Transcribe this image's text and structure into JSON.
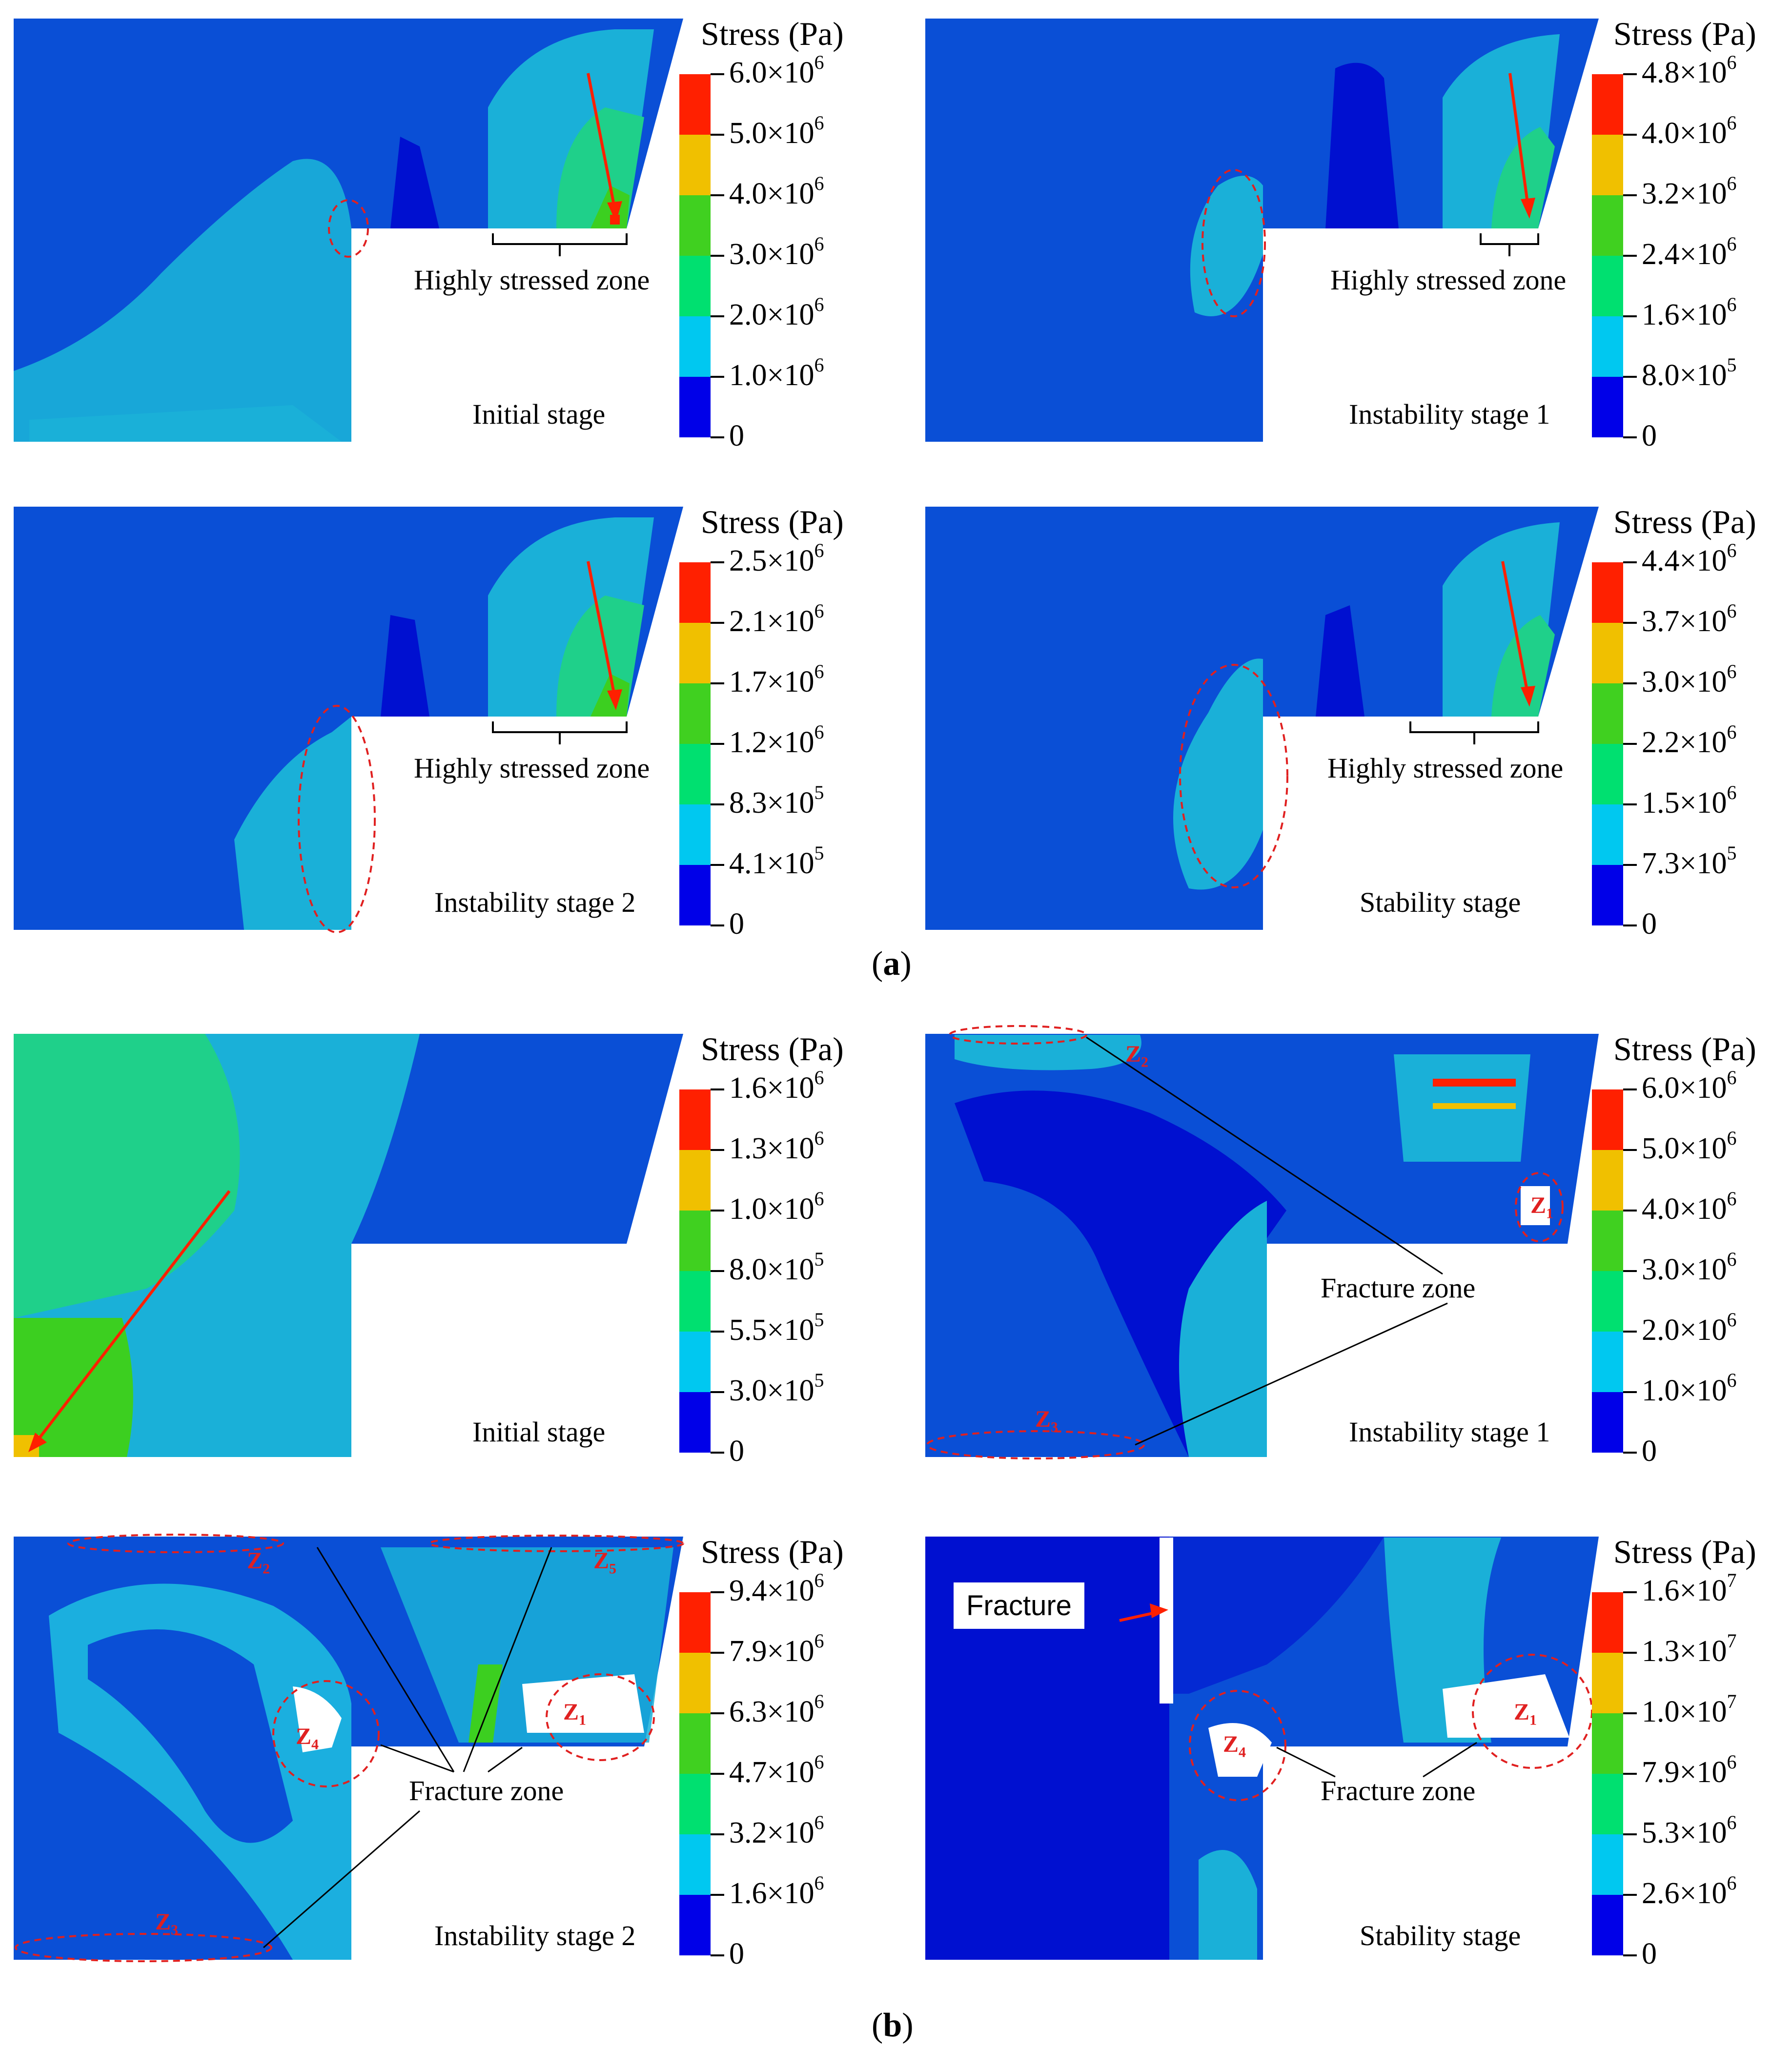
{
  "colorbar_colors": [
    "#0000e8",
    "#00c8f0",
    "#00e070",
    "#40d020",
    "#f0c000",
    "#ff2000"
  ],
  "panels": [
    {
      "id": "a1",
      "group": "a",
      "title": "Stress (Pa)",
      "stage": "Initial stage",
      "annotation": "Highly stressed zone",
      "ticks": [
        {
          "m": "0",
          "e": ""
        },
        {
          "m": "1.0×10",
          "e": "6"
        },
        {
          "m": "2.0×10",
          "e": "6"
        },
        {
          "m": "3.0×10",
          "e": "6"
        },
        {
          "m": "4.0×10",
          "e": "6"
        },
        {
          "m": "5.0×10",
          "e": "6"
        },
        {
          "m": "6.0×10",
          "e": "6"
        }
      ]
    },
    {
      "id": "a2",
      "group": "a",
      "title": "Stress (Pa)",
      "stage": "Instability stage 1",
      "annotation": "Highly stressed zone",
      "ticks": [
        {
          "m": "0",
          "e": ""
        },
        {
          "m": "8.0×10",
          "e": "5"
        },
        {
          "m": "1.6×10",
          "e": "6"
        },
        {
          "m": "2.4×10",
          "e": "6"
        },
        {
          "m": "3.2×10",
          "e": "6"
        },
        {
          "m": "4.0×10",
          "e": "6"
        },
        {
          "m": "4.8×10",
          "e": "6"
        }
      ]
    },
    {
      "id": "a3",
      "group": "a",
      "title": "Stress (Pa)",
      "stage": "Instability stage 2",
      "annotation": "Highly stressed zone",
      "ticks": [
        {
          "m": "0",
          "e": ""
        },
        {
          "m": "4.1×10",
          "e": "5"
        },
        {
          "m": "8.3×10",
          "e": "5"
        },
        {
          "m": "1.2×10",
          "e": "6"
        },
        {
          "m": "1.7×10",
          "e": "6"
        },
        {
          "m": "2.1×10",
          "e": "6"
        },
        {
          "m": "2.5×10",
          "e": "6"
        }
      ]
    },
    {
      "id": "a4",
      "group": "a",
      "title": "Stress (Pa)",
      "stage": "Stability stage",
      "annotation": "Highly stressed zone",
      "ticks": [
        {
          "m": "0",
          "e": ""
        },
        {
          "m": "7.3×10",
          "e": "5"
        },
        {
          "m": "1.5×10",
          "e": "6"
        },
        {
          "m": "2.2×10",
          "e": "6"
        },
        {
          "m": "3.0×10",
          "e": "6"
        },
        {
          "m": "3.7×10",
          "e": "6"
        },
        {
          "m": "4.4×10",
          "e": "6"
        }
      ]
    },
    {
      "id": "b1",
      "group": "b",
      "title": "Stress (Pa)",
      "stage": "Initial stage",
      "annotation": "",
      "ticks": [
        {
          "m": "0",
          "e": ""
        },
        {
          "m": "3.0×10",
          "e": "5"
        },
        {
          "m": "5.5×10",
          "e": "5"
        },
        {
          "m": "8.0×10",
          "e": "5"
        },
        {
          "m": "1.0×10",
          "e": "6"
        },
        {
          "m": "1.3×10",
          "e": "6"
        },
        {
          "m": "1.6×10",
          "e": "6"
        }
      ]
    },
    {
      "id": "b2",
      "group": "b",
      "title": "Stress (Pa)",
      "stage": "Instability stage 1",
      "annotation": "Fracture zone",
      "zones": [
        {
          "z": "Z",
          "n": "2"
        },
        {
          "z": "Z",
          "n": "1"
        },
        {
          "z": "Z",
          "n": "3"
        }
      ],
      "ticks": [
        {
          "m": "0",
          "e": ""
        },
        {
          "m": "1.0×10",
          "e": "6"
        },
        {
          "m": "2.0×10",
          "e": "6"
        },
        {
          "m": "3.0×10",
          "e": "6"
        },
        {
          "m": "4.0×10",
          "e": "6"
        },
        {
          "m": "5.0×10",
          "e": "6"
        },
        {
          "m": "6.0×10",
          "e": "6"
        }
      ]
    },
    {
      "id": "b3",
      "group": "b",
      "title": "Stress (Pa)",
      "stage": "Instability stage 2",
      "annotation": "Fracture zone",
      "zones": [
        {
          "z": "Z",
          "n": "2"
        },
        {
          "z": "Z",
          "n": "5"
        },
        {
          "z": "Z",
          "n": "4"
        },
        {
          "z": "Z",
          "n": "1"
        },
        {
          "z": "Z",
          "n": "3"
        }
      ],
      "ticks": [
        {
          "m": "0",
          "e": ""
        },
        {
          "m": "1.6×10",
          "e": "6"
        },
        {
          "m": "3.2×10",
          "e": "6"
        },
        {
          "m": "4.7×10",
          "e": "6"
        },
        {
          "m": "6.3×10",
          "e": "6"
        },
        {
          "m": "7.9×10",
          "e": "6"
        },
        {
          "m": "9.4×10",
          "e": "6"
        }
      ]
    },
    {
      "id": "b4",
      "group": "b",
      "title": "Stress (Pa)",
      "stage": "Stability stage",
      "annotation": "Fracture zone",
      "fracture_label": "Fracture",
      "zones": [
        {
          "z": "Z",
          "n": "4"
        },
        {
          "z": "Z",
          "n": "1"
        }
      ],
      "ticks": [
        {
          "m": "0",
          "e": ""
        },
        {
          "m": "2.6×10",
          "e": "6"
        },
        {
          "m": "5.3×10",
          "e": "6"
        },
        {
          "m": "7.9×10",
          "e": "6"
        },
        {
          "m": "1.0×10",
          "e": "7"
        },
        {
          "m": "1.3×10",
          "e": "7"
        },
        {
          "m": "1.6×10",
          "e": "7"
        }
      ]
    }
  ],
  "captions": {
    "a": "a",
    "b": "b"
  }
}
